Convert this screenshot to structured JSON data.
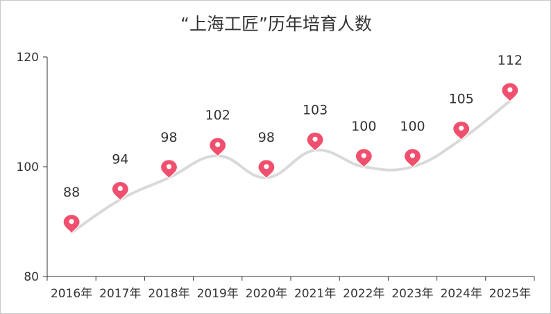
{
  "chart_data": {
    "type": "line",
    "title": "“上海工匠”历年培育人数",
    "categories": [
      "2016年",
      "2017年",
      "2018年",
      "2019年",
      "2020年",
      "2021年",
      "2022年",
      "2023年",
      "2024年",
      "2025年"
    ],
    "series": [
      {
        "values": [
          88,
          94,
          98,
          102,
          98,
          103,
          100,
          100,
          105,
          112
        ]
      }
    ],
    "data_labels": [
      "88",
      "94",
      "98",
      "102",
      "98",
      "103",
      "100",
      "100",
      "105",
      "112"
    ],
    "y_ticks": [
      "80",
      "100",
      "120"
    ],
    "ylim": [
      80,
      120
    ],
    "grid": false,
    "legend": "none",
    "line_color": "#d9d9d9",
    "marker": "map-pin",
    "marker_color": "#f0506e"
  }
}
